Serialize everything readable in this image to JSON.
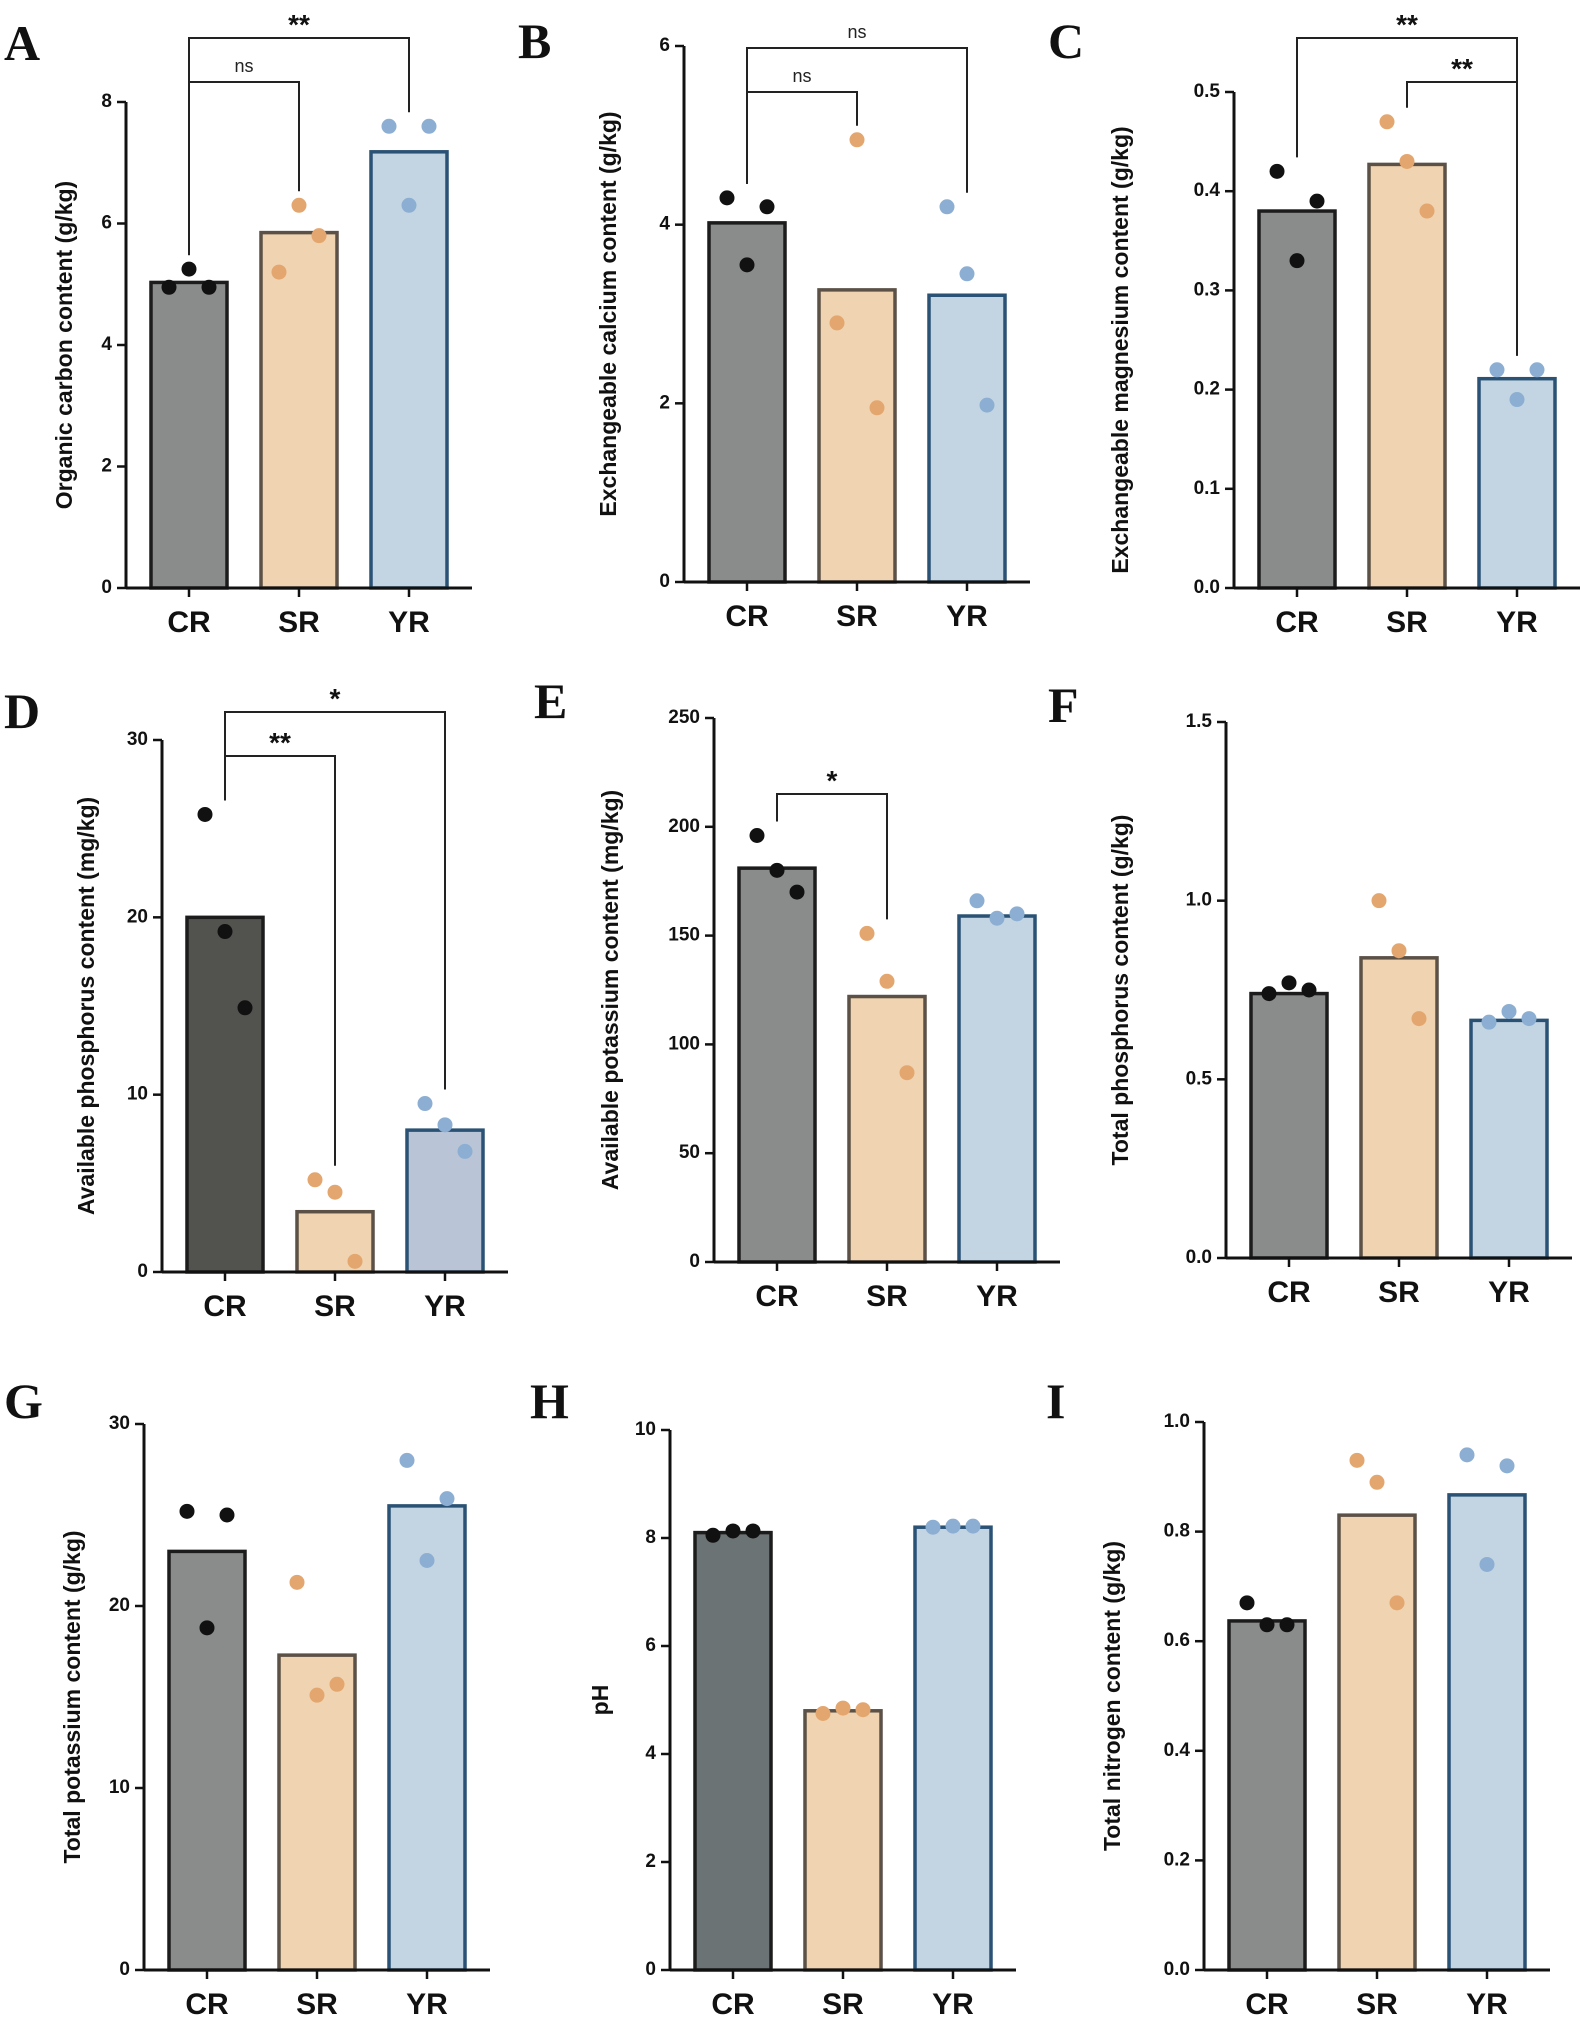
{
  "colors": {
    "axis": "#111111",
    "bracket": "#222222",
    "bar_fill": {
      "CR": "#8a8c8b",
      "SR": "#f0d3b1",
      "YR": "#c3d5e3"
    },
    "bar_stroke": {
      "CR": "#1c1c1c",
      "SR": "#5c5147",
      "YR": "#2a5274"
    },
    "dot": {
      "CR": "#111111",
      "SR": "#e3a66e",
      "YR": "#8caed2"
    }
  },
  "chart_data": [
    {
      "id": "A",
      "letter": "A",
      "type": "bar",
      "ylabel": "Organic carbon content (g/kg)",
      "categories": [
        "CR",
        "SR",
        "YR"
      ],
      "ylim": [
        0,
        8
      ],
      "yticks": [
        0,
        2,
        4,
        6,
        8
      ],
      "ytick_labels": [
        "0",
        "2",
        "4",
        "6",
        "8"
      ],
      "means": [
        5.03,
        5.85,
        7.18
      ],
      "points": [
        [
          4.95,
          5.25,
          4.95
        ],
        [
          5.2,
          6.3,
          5.8
        ],
        [
          7.6,
          6.3,
          7.6
        ]
      ],
      "significance": [
        {
          "from": 0,
          "to": 1,
          "label": "ns",
          "level": 1
        },
        {
          "from": 0,
          "to": 2,
          "label": "**",
          "level": 2
        }
      ]
    },
    {
      "id": "B",
      "letter": "B",
      "type": "bar",
      "ylabel": "Exchangeable calcium content (g/kg)",
      "categories": [
        "CR",
        "SR",
        "YR"
      ],
      "ylim": [
        0,
        6
      ],
      "yticks": [
        0,
        2,
        4,
        6
      ],
      "ytick_labels": [
        "0",
        "2",
        "4",
        "6"
      ],
      "means": [
        4.02,
        3.27,
        3.21
      ],
      "points": [
        [
          4.3,
          3.55,
          4.2
        ],
        [
          2.9,
          4.95,
          1.95
        ],
        [
          4.2,
          3.45,
          1.98
        ]
      ],
      "significance": [
        {
          "from": 0,
          "to": 1,
          "label": "ns",
          "level": 1
        },
        {
          "from": 0,
          "to": 2,
          "label": "ns",
          "level": 2
        }
      ]
    },
    {
      "id": "C",
      "letter": "C",
      "type": "bar",
      "ylabel": "Exchangeable magnesium content (g/kg)",
      "categories": [
        "CR",
        "SR",
        "YR"
      ],
      "ylim": [
        0,
        0.5
      ],
      "yticks": [
        0,
        0.1,
        0.2,
        0.3,
        0.4,
        0.5
      ],
      "ytick_labels": [
        "0.0",
        "0.1",
        "0.2",
        "0.3",
        "0.4",
        "0.5"
      ],
      "means": [
        0.38,
        0.427,
        0.211
      ],
      "points": [
        [
          0.42,
          0.33,
          0.39
        ],
        [
          0.47,
          0.43,
          0.38
        ],
        [
          0.22,
          0.19,
          0.22
        ]
      ],
      "significance": [
        {
          "from": 1,
          "to": 2,
          "label": "**",
          "level": 1
        },
        {
          "from": 0,
          "to": 2,
          "label": "**",
          "level": 2
        }
      ]
    },
    {
      "id": "D",
      "letter": "D",
      "type": "bar",
      "ylabel": "Available phosphorus content (mg/kg)",
      "categories": [
        "CR",
        "SR",
        "YR"
      ],
      "ylim": [
        0,
        30
      ],
      "yticks": [
        0,
        10,
        20,
        30
      ],
      "ytick_labels": [
        "0",
        "10",
        "20",
        "30"
      ],
      "means": [
        20.0,
        3.4,
        8.0
      ],
      "points": [
        [
          25.8,
          19.2,
          14.9
        ],
        [
          5.2,
          4.5,
          0.6
        ],
        [
          9.5,
          8.3,
          6.8
        ]
      ],
      "bar_fill_override": [
        "#52524f",
        "#f0d3b1",
        "#b9c5d6"
      ],
      "significance": [
        {
          "from": 0,
          "to": 1,
          "label": "**",
          "level": 1
        },
        {
          "from": 0,
          "to": 2,
          "label": "*",
          "level": 2
        }
      ]
    },
    {
      "id": "E",
      "letter": "E",
      "type": "bar",
      "ylabel": "Available potassium content (mg/kg)",
      "categories": [
        "CR",
        "SR",
        "YR"
      ],
      "ylim": [
        0,
        250
      ],
      "yticks": [
        0,
        50,
        100,
        150,
        200,
        250
      ],
      "ytick_labels": [
        "0",
        "50",
        "100",
        "150",
        "200",
        "250"
      ],
      "means": [
        181,
        122,
        159
      ],
      "points": [
        [
          196,
          180,
          170
        ],
        [
          151,
          129,
          87
        ],
        [
          166,
          158,
          160
        ]
      ],
      "significance": [
        {
          "from": 0,
          "to": 1,
          "label": "*",
          "level": 1
        }
      ]
    },
    {
      "id": "F",
      "letter": "F",
      "type": "bar",
      "ylabel": "Total phosphorus content (g/kg)",
      "categories": [
        "CR",
        "SR",
        "YR"
      ],
      "ylim": [
        0,
        1.5
      ],
      "yticks": [
        0,
        0.5,
        1.0,
        1.5
      ],
      "ytick_labels": [
        "0.0",
        "0.5",
        "1.0",
        "1.5"
      ],
      "means": [
        0.74,
        0.84,
        0.665
      ],
      "points": [
        [
          0.74,
          0.77,
          0.75
        ],
        [
          1.0,
          0.86,
          0.67
        ],
        [
          0.66,
          0.69,
          0.67
        ]
      ],
      "significance": []
    },
    {
      "id": "G",
      "letter": "G",
      "type": "bar",
      "ylabel": "Total potassium content (g/kg)",
      "categories": [
        "CR",
        "SR",
        "YR"
      ],
      "ylim": [
        0,
        30
      ],
      "yticks": [
        0,
        10,
        20,
        30
      ],
      "ytick_labels": [
        "0",
        "10",
        "20",
        "30"
      ],
      "means": [
        23.0,
        17.3,
        25.5
      ],
      "points": [
        [
          25.2,
          18.8,
          25.0
        ],
        [
          21.3,
          15.1,
          15.7
        ],
        [
          28.0,
          22.5,
          25.9
        ]
      ],
      "significance": []
    },
    {
      "id": "H",
      "letter": "H",
      "type": "bar",
      "ylabel": "pH",
      "categories": [
        "CR",
        "SR",
        "YR"
      ],
      "ylim": [
        0,
        10
      ],
      "yticks": [
        0,
        2,
        4,
        6,
        8,
        10
      ],
      "ytick_labels": [
        "0",
        "2",
        "4",
        "6",
        "8",
        "10"
      ],
      "means": [
        8.1,
        4.8,
        8.2
      ],
      "points": [
        [
          8.05,
          8.13,
          8.13
        ],
        [
          4.75,
          4.85,
          4.82
        ],
        [
          8.2,
          8.22,
          8.22
        ]
      ],
      "bar_fill_override": [
        "#6c7374",
        "#f0d3b1",
        "#c3d5e3"
      ],
      "significance": []
    },
    {
      "id": "I",
      "letter": "I",
      "type": "bar",
      "ylabel": "Total nitrogen content (g/kg)",
      "categories": [
        "CR",
        "SR",
        "YR"
      ],
      "ylim": [
        0,
        1.0
      ],
      "yticks": [
        0,
        0.2,
        0.4,
        0.6,
        0.8,
        1.0
      ],
      "ytick_labels": [
        "0.0",
        "0.2",
        "0.4",
        "0.6",
        "0.8",
        "1.0"
      ],
      "means": [
        0.637,
        0.83,
        0.867
      ],
      "points": [
        [
          0.67,
          0.63,
          0.63
        ],
        [
          0.93,
          0.89,
          0.67
        ],
        [
          0.94,
          0.74,
          0.92
        ]
      ],
      "significance": []
    }
  ]
}
